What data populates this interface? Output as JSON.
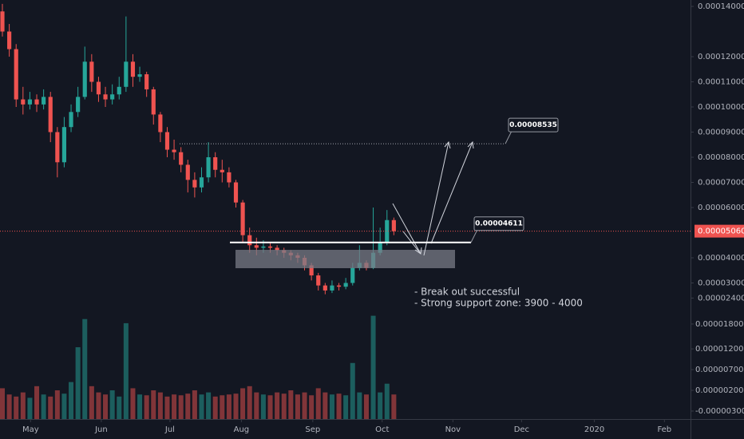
{
  "chart_data": {
    "type": "candlestick",
    "open": [
      0.000138,
      0.00013,
      0.000123,
      0.000103,
      0.000101,
      0.000103,
      0.000101,
      0.000104,
      9e-05,
      7.8e-05,
      9.2e-05,
      9.8e-05,
      0.000104,
      0.000118,
      0.00011,
      0.000105,
      0.000103,
      0.000105,
      0.000108,
      0.000118,
      0.000112,
      0.000113,
      0.000107,
      9.7e-05,
      9e-05,
      8.3e-05,
      8.2e-05,
      7.7e-05,
      7.1e-05,
      6.8e-05,
      7.2e-05,
      8e-05,
      7.5e-05,
      7.4e-05,
      7e-05,
      6.2e-05,
      4.9e-05,
      4.5e-05,
      4.4e-05,
      4.45e-05,
      4.4e-05,
      4.3e-05,
      4.2e-05,
      4.1e-05,
      4e-05,
      3.7e-05,
      3.3e-05,
      2.9e-05,
      2.7e-05,
      2.9e-05,
      2.85e-05,
      3e-05,
      3.6e-05,
      3.8e-05,
      3.6e-05,
      4.2e-05,
      4.6e-05,
      5.5e-05
    ],
    "high": [
      0.000141,
      0.000133,
      0.000125,
      0.000108,
      0.000106,
      0.000105,
      0.000107,
      0.000106,
      9.2e-05,
      9.6e-05,
      0.000101,
      0.000108,
      0.000124,
      0.000121,
      0.000112,
      0.000108,
      0.000109,
      0.000112,
      0.000136,
      0.000121,
      0.000116,
      0.000114,
      0.000108,
      9.8e-05,
      9.2e-05,
      8.7e-05,
      8.4e-05,
      7.9e-05,
      7.4e-05,
      7.6e-05,
      8.6e-05,
      8.2e-05,
      7.9e-05,
      7.6e-05,
      7.1e-05,
      6.3e-05,
      5.2e-05,
      4.8e-05,
      4.7e-05,
      4.6e-05,
      4.5e-05,
      4.4e-05,
      4.3e-05,
      4.2e-05,
      4.1e-05,
      3.8e-05,
      3.4e-05,
      3e-05,
      3.1e-05,
      3e-05,
      3.2e-05,
      3.8e-05,
      4.5e-05,
      3.9e-05,
      6e-05,
      5.2e-05,
      5.9e-05,
      5.6e-05
    ],
    "low": [
      0.000128,
      0.00012,
      0.0001,
      9.7e-05,
      9.9e-05,
      9.8e-05,
      9.9e-05,
      8.6e-05,
      7.2e-05,
      7.6e-05,
      9e-05,
      9.6e-05,
      0.000103,
      0.000106,
      0.000102,
      0.0001,
      0.000101,
      0.000103,
      0.000106,
      0.000108,
      0.00011,
      0.000104,
      9.3e-05,
      8.6e-05,
      8e-05,
      7.9e-05,
      7.4e-05,
      6.6e-05,
      6.4e-05,
      6.6e-05,
      7e-05,
      7.2e-05,
      7e-05,
      6.8e-05,
      6e-05,
      4.6e-05,
      4.2e-05,
      4.1e-05,
      4.2e-05,
      4.2e-05,
      4.1e-05,
      4e-05,
      3.9e-05,
      3.8e-05,
      3.5e-05,
      3.1e-05,
      2.7e-05,
      2.55e-05,
      2.6e-05,
      2.7e-05,
      2.75e-05,
      2.9e-05,
      3.5e-05,
      3.5e-05,
      3.55e-05,
      4.1e-05,
      4.5e-05,
      4.9e-05
    ],
    "close": [
      0.00013,
      0.000123,
      0.000103,
      0.000101,
      0.000103,
      0.000101,
      0.000104,
      9e-05,
      7.8e-05,
      9.2e-05,
      9.8e-05,
      0.000104,
      0.000118,
      0.00011,
      0.000105,
      0.000103,
      0.000105,
      0.000108,
      0.000118,
      0.000112,
      0.000113,
      0.000107,
      9.7e-05,
      9e-05,
      8.3e-05,
      8.2e-05,
      7.7e-05,
      7.1e-05,
      6.8e-05,
      7.2e-05,
      8e-05,
      7.5e-05,
      7.4e-05,
      7e-05,
      6.2e-05,
      4.9e-05,
      4.5e-05,
      4.4e-05,
      4.45e-05,
      4.4e-05,
      4.3e-05,
      4.2e-05,
      4.1e-05,
      4e-05,
      3.7e-05,
      3.3e-05,
      2.9e-05,
      2.7e-05,
      2.9e-05,
      2.85e-05,
      3e-05,
      3.6e-05,
      3.8e-05,
      3.6e-05,
      4.2e-05,
      4.6e-05,
      5.5e-05,
      5.06e-05
    ],
    "volume": [
      2.5e-06,
      1e-06,
      5e-07,
      1.5e-06,
      2e-07,
      3e-06,
      1e-06,
      5e-07,
      2e-06,
      1.2e-06,
      4e-06,
      1.24e-05,
      1.92e-05,
      3e-06,
      1.5e-06,
      1e-06,
      2e-06,
      5e-07,
      1.82e-05,
      2.5e-06,
      1e-06,
      8e-07,
      2e-06,
      1.5e-06,
      5e-07,
      1e-06,
      8e-07,
      1.2e-06,
      2e-06,
      1e-06,
      1.5e-06,
      5e-07,
      8e-07,
      1e-06,
      1.2e-06,
      2.5e-06,
      3e-06,
      1.5e-06,
      1e-06,
      8e-07,
      1.5e-06,
      1.2e-06,
      2e-06,
      1e-06,
      1.5e-06,
      8e-07,
      2.5e-06,
      1.5e-06,
      1e-06,
      1.2e-06,
      8e-07,
      8.6e-06,
      1.5e-06,
      1e-06,
      2e-05,
      1.5e-06,
      3.6e-06,
      1e-06
    ],
    "categories": [
      null,
      null,
      null,
      null,
      null,
      null,
      null,
      null,
      null,
      null,
      null,
      null,
      null,
      null,
      null,
      null,
      null,
      null,
      null,
      null,
      null,
      null,
      null,
      null,
      null,
      null,
      null,
      null,
      null,
      null,
      null,
      null,
      null,
      null,
      null,
      null,
      null,
      null,
      null,
      null,
      null,
      null,
      null,
      null,
      null,
      null,
      null,
      null,
      null,
      null,
      null,
      null,
      null,
      null,
      null,
      null,
      null,
      null
    ],
    "up_color": "#26a69a",
    "down_color": "#ef5350",
    "xlim": [
      -0.35,
      100.2
    ],
    "xticks": [
      {
        "value": 4.1,
        "label": "May"
      },
      {
        "value": 14.4,
        "label": "Jun"
      },
      {
        "value": 24.4,
        "label": "Jul"
      },
      {
        "value": 34.8,
        "label": "Aug"
      },
      {
        "value": 45.2,
        "label": "Sep"
      },
      {
        "value": 55.3,
        "label": "Oct"
      },
      {
        "value": 65.6,
        "label": "Nov"
      },
      {
        "value": 75.6,
        "label": "Dec"
      },
      {
        "value": 86.2,
        "label": "2020"
      },
      {
        "value": 96.4,
        "label": "Feb"
      }
    ],
    "ylim": [
      -2.413e-05,
      0.00014254
    ],
    "yticks": [
      {
        "value": 0.00014,
        "label": "0.00014000"
      },
      {
        "value": 0.00012,
        "label": "0.00012000"
      },
      {
        "value": 0.00011,
        "label": "0.00011000"
      },
      {
        "value": 0.0001,
        "label": "0.00010000"
      },
      {
        "value": 9e-05,
        "label": "0.00009000"
      },
      {
        "value": 8e-05,
        "label": "0.00008000"
      },
      {
        "value": 7e-05,
        "label": "0.00007000"
      },
      {
        "value": 6e-05,
        "label": "0.00006000"
      },
      {
        "value": 4e-05,
        "label": "0.00004000"
      },
      {
        "value": 3e-05,
        "label": "0.00003000"
      },
      {
        "value": 2.4e-05,
        "label": "0.00002400"
      }
    ],
    "y2lim": [
      -4.93e-06,
      9.62e-05
    ],
    "y2ticks": [
      {
        "value": 1.8e-05,
        "label": "0.00001800"
      },
      {
        "value": 1.2e-05,
        "label": "0.00001200"
      },
      {
        "value": 7e-06,
        "label": "0.00000700"
      },
      {
        "value": 2e-06,
        "label": "0.00000200"
      },
      {
        "value": -3e-06,
        "label": "-0.00000300"
      }
    ],
    "last_price_label": "0.00005060",
    "levels": [
      {
        "value": 8.535e-05,
        "label": "0.00008535"
      },
      {
        "value": 4.611e-05,
        "label": "0.00004611"
      }
    ],
    "notes": [
      "- Break out successful",
      "- Strong support zone: 3900 - 4000"
    ]
  }
}
